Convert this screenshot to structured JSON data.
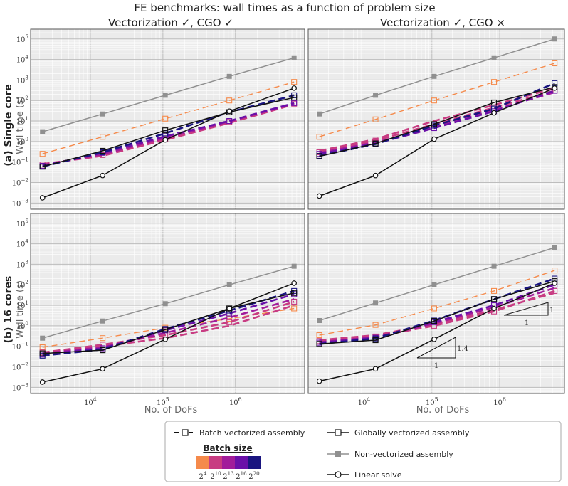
{
  "title": "FE benchmarks: wall times as a function of problem size",
  "columns": [
    "Vectorization ✓, CGO ✓",
    "Vectorization ✓, CGO ×"
  ],
  "rows": [
    {
      "tag": "(a)",
      "name": "Single core",
      "ylabel": "Wall time (s)"
    },
    {
      "tag": "(b)",
      "name": "16 cores",
      "ylabel": "Wall time (s)"
    }
  ],
  "xlabel": "No. of DoFs",
  "xticks": [
    {
      "value": 10000,
      "mant": "10",
      "exp": "4"
    },
    {
      "value": 100000,
      "mant": "10",
      "exp": "5"
    },
    {
      "value": 1000000,
      "mant": "10",
      "exp": "6"
    }
  ],
  "yticks": [
    {
      "value": 0.001,
      "mant": "10",
      "exp": "−3"
    },
    {
      "value": 0.01,
      "mant": "10",
      "exp": "−2"
    },
    {
      "value": 0.1,
      "mant": "10",
      "exp": "−1"
    },
    {
      "value": 1,
      "mant": "10",
      "exp": "0"
    },
    {
      "value": 10,
      "mant": "10",
      "exp": "1"
    },
    {
      "value": 100,
      "mant": "10",
      "exp": "2"
    },
    {
      "value": 1000,
      "mant": "10",
      "exp": "3"
    },
    {
      "value": 10000,
      "mant": "10",
      "exp": "4"
    },
    {
      "value": 100000,
      "mant": "10",
      "exp": "5"
    }
  ],
  "slopes": [
    {
      "run": "1",
      "rise": "1"
    },
    {
      "run": "1",
      "rise": "1.4"
    }
  ],
  "legend": {
    "batch": "Batch vectorized assembly",
    "batch_size_title": "Batch size",
    "batch_sizes": [
      {
        "mant": "2",
        "exp": "4",
        "color": "#f58a4b"
      },
      {
        "mant": "2",
        "exp": "10",
        "color": "#c83c82"
      },
      {
        "mant": "2",
        "exp": "13",
        "color": "#a21c9a"
      },
      {
        "mant": "2",
        "exp": "16",
        "color": "#6a10a8"
      },
      {
        "mant": "2",
        "exp": "20",
        "color": "#1a1580"
      }
    ],
    "global": "Globally vectorized assembly",
    "nonvec": "Non-vectorized assembly",
    "linear": "Linear solve"
  },
  "colors": {
    "nonvec": "#909090",
    "global": "#111111",
    "linear": "#111111",
    "panel_bg": "#ebebeb",
    "grid": "#ffffff"
  },
  "chart_data": [
    {
      "type": "line",
      "panel": "a-left",
      "xscale": "log",
      "yscale": "log",
      "xlim": [
        1500,
        9000000
      ],
      "ylim": [
        0.0005,
        300000
      ],
      "x": [
        2187,
        14739,
        107811,
        823875,
        6440067
      ],
      "series": [
        {
          "kind": "nonvec",
          "values": [
            3.0,
            22,
            180,
            1500,
            12000
          ]
        },
        {
          "kind": "batch",
          "size": 0,
          "values": [
            0.25,
            1.7,
            13,
            100,
            800
          ]
        },
        {
          "kind": "batch",
          "size": 1,
          "values": [
            0.08,
            0.2,
            1.2,
            8.0,
            65
          ]
        },
        {
          "kind": "batch",
          "size": 1,
          "values": [
            0.075,
            0.22,
            1.3,
            9.0,
            70
          ]
        },
        {
          "kind": "batch",
          "size": 2,
          "values": [
            0.07,
            0.24,
            1.5,
            9.5,
            70
          ]
        },
        {
          "kind": "batch",
          "size": 3,
          "values": [
            0.065,
            0.28,
            1.8,
            10,
            75
          ]
        },
        {
          "kind": "batch",
          "size": 4,
          "values": [
            0.06,
            0.3,
            2.5,
            27,
            180
          ]
        },
        {
          "kind": "global",
          "values": [
            0.06,
            0.35,
            3.5,
            27,
            140
          ]
        },
        {
          "kind": "linear",
          "values": [
            0.0018,
            0.022,
            1.2,
            30,
            400
          ]
        }
      ]
    },
    {
      "type": "line",
      "panel": "a-right",
      "xscale": "log",
      "yscale": "log",
      "xlim": [
        1500,
        9000000
      ],
      "ylim": [
        0.0005,
        300000
      ],
      "x": [
        2187,
        14739,
        107811,
        823875,
        6440067
      ],
      "series": [
        {
          "kind": "nonvec",
          "values": [
            22,
            180,
            1500,
            12000,
            100000
          ]
        },
        {
          "kind": "batch",
          "size": 0,
          "values": [
            1.7,
            12,
            100,
            800,
            6500
          ]
        },
        {
          "kind": "batch",
          "size": 1,
          "values": [
            0.35,
            1.3,
            10,
            60,
            400
          ]
        },
        {
          "kind": "batch",
          "size": 1,
          "values": [
            0.3,
            1.1,
            7,
            45,
            300
          ]
        },
        {
          "kind": "batch",
          "size": 2,
          "values": [
            0.28,
            0.9,
            5,
            35,
            250
          ]
        },
        {
          "kind": "batch",
          "size": 3,
          "values": [
            0.25,
            0.8,
            4.5,
            30,
            300
          ]
        },
        {
          "kind": "batch",
          "size": 4,
          "values": [
            0.2,
            0.75,
            6,
            40,
            700
          ]
        },
        {
          "kind": "global",
          "values": [
            0.19,
            0.8,
            7,
            80,
            450
          ]
        },
        {
          "kind": "linear",
          "values": [
            0.0022,
            0.022,
            1.3,
            25,
            400
          ]
        }
      ]
    },
    {
      "type": "line",
      "panel": "b-left",
      "xscale": "log",
      "yscale": "log",
      "xlim": [
        1500,
        9000000
      ],
      "ylim": [
        0.0005,
        300000
      ],
      "x": [
        2187,
        14739,
        107811,
        823875,
        6440067
      ],
      "series": [
        {
          "kind": "nonvec",
          "values": [
            0.25,
            1.7,
            12,
            100,
            800
          ]
        },
        {
          "kind": "batch",
          "size": 0,
          "values": [
            0.09,
            0.25,
            0.8,
            2.2,
            7
          ]
        },
        {
          "kind": "batch",
          "size": 1,
          "values": [
            0.05,
            0.1,
            0.25,
            1.0,
            10
          ]
        },
        {
          "kind": "batch",
          "size": 1,
          "values": [
            0.05,
            0.12,
            0.35,
            1.5,
            15
          ]
        },
        {
          "kind": "batch",
          "size": 2,
          "values": [
            0.045,
            0.09,
            0.45,
            2.5,
            20
          ]
        },
        {
          "kind": "batch",
          "size": 3,
          "values": [
            0.04,
            0.08,
            0.6,
            4.0,
            35
          ]
        },
        {
          "kind": "batch",
          "size": 4,
          "values": [
            0.035,
            0.07,
            0.7,
            5.5,
            50
          ]
        },
        {
          "kind": "global",
          "values": [
            0.045,
            0.065,
            0.65,
            7,
            40
          ]
        },
        {
          "kind": "linear",
          "values": [
            0.0018,
            0.008,
            0.22,
            7,
            120
          ]
        }
      ]
    },
    {
      "type": "line",
      "panel": "b-right",
      "xscale": "log",
      "yscale": "log",
      "xlim": [
        1500,
        9000000
      ],
      "ylim": [
        0.0005,
        300000
      ],
      "x": [
        2187,
        14739,
        107811,
        823875,
        6440067
      ],
      "series": [
        {
          "kind": "nonvec",
          "values": [
            1.8,
            13,
            100,
            800,
            6500
          ]
        },
        {
          "kind": "batch",
          "size": 0,
          "values": [
            0.35,
            1.1,
            7,
            50,
            500
          ]
        },
        {
          "kind": "batch",
          "size": 1,
          "values": [
            0.2,
            0.35,
            1.2,
            6,
            40
          ]
        },
        {
          "kind": "batch",
          "size": 1,
          "values": [
            0.18,
            0.3,
            1.0,
            5,
            50
          ]
        },
        {
          "kind": "batch",
          "size": 2,
          "values": [
            0.16,
            0.28,
            1.3,
            8,
            70
          ]
        },
        {
          "kind": "batch",
          "size": 3,
          "values": [
            0.15,
            0.26,
            1.5,
            10,
            100
          ]
        },
        {
          "kind": "batch",
          "size": 4,
          "values": [
            0.13,
            0.24,
            1.8,
            20,
            200
          ]
        },
        {
          "kind": "global",
          "values": [
            0.13,
            0.2,
            1.7,
            20,
            150
          ]
        },
        {
          "kind": "linear",
          "values": [
            0.002,
            0.008,
            0.22,
            7,
            120
          ]
        }
      ]
    }
  ]
}
